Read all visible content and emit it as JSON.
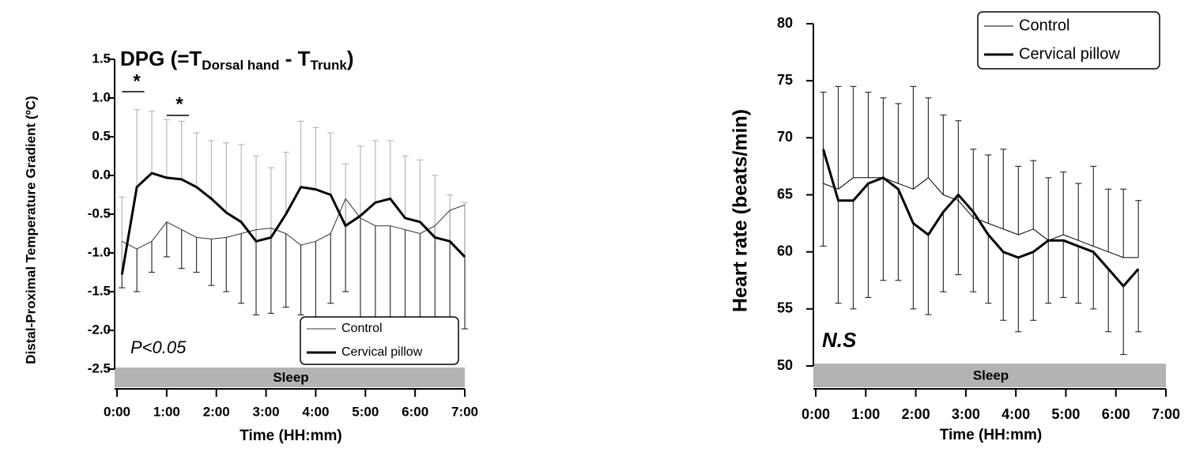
{
  "chart_data": [
    {
      "type": "line",
      "title_parts": [
        "DPG (=T",
        "Dorsal hand",
        " - T",
        "Trunk",
        ")"
      ],
      "xlabel": "Time (HH:mm)",
      "ylabel": "Distal-Proximal Temperature Gradient (ºC)",
      "annotations": [
        "*",
        "*",
        "P<0.05"
      ],
      "band_label": "Sleep",
      "xlim": [
        0,
        7
      ],
      "xticks": [
        {
          "value": 0,
          "label": "0:00"
        },
        {
          "value": 1,
          "label": "1:00"
        },
        {
          "value": 2,
          "label": "2:00"
        },
        {
          "value": 3,
          "label": "3:00"
        },
        {
          "value": 4,
          "label": "4:00"
        },
        {
          "value": 5,
          "label": "5:00"
        },
        {
          "value": 6,
          "label": "6:00"
        },
        {
          "value": 7,
          "label": "7:00"
        }
      ],
      "ylim": [
        -2.5,
        1.5
      ],
      "yticks": [
        -2.5,
        {
          "value": -2,
          "label": "-2.0"
        },
        -1.5,
        {
          "value": -1,
          "label": "-1.0"
        },
        -0.5,
        {
          "value": 0,
          "label": "0.0"
        },
        0.5,
        {
          "value": 1,
          "label": "1.0"
        },
        1.5
      ],
      "legend": "bottom-right",
      "x": [
        0.1,
        0.4,
        0.7,
        1.0,
        1.3,
        1.6,
        1.9,
        2.2,
        2.5,
        2.8,
        3.1,
        3.4,
        3.7,
        4.0,
        4.3,
        4.6,
        4.9,
        5.2,
        5.5,
        5.8,
        6.1,
        6.4,
        6.7,
        7.0
      ],
      "series": [
        {
          "name": "Control",
          "color": "#333333",
          "width": 1,
          "error_color": "#333333",
          "error_direction": "down",
          "values": [
            -0.85,
            -0.95,
            -0.85,
            -0.6,
            -0.7,
            -0.8,
            -0.82,
            -0.8,
            -0.75,
            -0.7,
            -0.68,
            -0.75,
            -0.9,
            -0.85,
            -0.75,
            -0.3,
            -0.55,
            -0.65,
            -0.65,
            -0.7,
            -0.75,
            -0.65,
            -0.45,
            -0.38
          ],
          "errors": [
            0.6,
            0.55,
            0.4,
            0.45,
            0.5,
            0.45,
            0.6,
            0.7,
            0.9,
            1.1,
            1.1,
            0.95,
            0.9,
            1.0,
            0.9,
            1.2,
            1.4,
            1.3,
            1.2,
            1.3,
            1.4,
            1.5,
            1.7,
            1.6
          ]
        },
        {
          "name": "Cervical pillow",
          "color": "#000000",
          "width": 3,
          "error_color": "#b8b8b8",
          "error_direction": "up",
          "values": [
            -1.28,
            -0.15,
            0.03,
            -0.03,
            -0.05,
            -0.15,
            -0.3,
            -0.48,
            -0.6,
            -0.85,
            -0.8,
            -0.5,
            -0.15,
            -0.18,
            -0.25,
            -0.65,
            -0.52,
            -0.35,
            -0.3,
            -0.55,
            -0.6,
            -0.8,
            -0.85,
            -1.05
          ],
          "errors": [
            1.0,
            1.0,
            0.8,
            0.75,
            0.75,
            0.7,
            0.75,
            0.9,
            1.0,
            1.1,
            0.9,
            0.8,
            0.85,
            0.8,
            0.8,
            0.8,
            0.9,
            0.8,
            0.75,
            0.8,
            0.8,
            0.8,
            0.6,
            0.7
          ]
        }
      ]
    },
    {
      "type": "line",
      "xlabel": "Time (HH:mm)",
      "ylabel": "Heart rate (beats/min)",
      "annotations": [
        "N.S"
      ],
      "band_label": "Sleep",
      "xlim": [
        0,
        7
      ],
      "xticks": [
        {
          "value": 0,
          "label": "0:00"
        },
        {
          "value": 1,
          "label": "1:00"
        },
        {
          "value": 2,
          "label": "2:00"
        },
        {
          "value": 3,
          "label": "3:00"
        },
        {
          "value": 4,
          "label": "4:00"
        },
        {
          "value": 5,
          "label": "5:00"
        },
        {
          "value": 6,
          "label": "6:00"
        },
        {
          "value": 7,
          "label": "7:00"
        }
      ],
      "ylim": [
        50,
        80
      ],
      "yticks": [
        50,
        55,
        60,
        65,
        70,
        75,
        80
      ],
      "legend": "top-right",
      "x": [
        0.15,
        0.45,
        0.75,
        1.05,
        1.35,
        1.65,
        1.95,
        2.25,
        2.55,
        2.85,
        3.15,
        3.45,
        3.75,
        4.05,
        4.35,
        4.65,
        4.95,
        5.25,
        5.55,
        5.85,
        6.15,
        6.45
      ],
      "series": [
        {
          "name": "Control",
          "color": "#000000",
          "width": 1,
          "error_color": "#333333",
          "error_direction": "up",
          "values": [
            66,
            65.5,
            66.5,
            66.5,
            66.5,
            66,
            65.5,
            66.5,
            65,
            64.5,
            63,
            62.5,
            62,
            61.5,
            62,
            61,
            61.5,
            61,
            60.5,
            60,
            59.5,
            59.5
          ],
          "errors": [
            8,
            9,
            8,
            7.5,
            7,
            7,
            9,
            7,
            7,
            7,
            6,
            6,
            7,
            6,
            6,
            5.5,
            5.5,
            5,
            7,
            5.5,
            6,
            5
          ]
        },
        {
          "name": "Cervical pillow",
          "color": "#000000",
          "width": 3,
          "error_color": "#333333",
          "error_direction": "down",
          "values": [
            69,
            64.5,
            64.5,
            66,
            66.5,
            65.5,
            62.5,
            61.5,
            63.5,
            65,
            63.5,
            61.5,
            60,
            59.5,
            60,
            61,
            61,
            60.5,
            60,
            58.5,
            57,
            58.5
          ],
          "errors": [
            8.5,
            9,
            9.5,
            10,
            9,
            8,
            7.5,
            7,
            7,
            7,
            7,
            6,
            6,
            6.5,
            6,
            5.5,
            5,
            5,
            5,
            5.5,
            6,
            5.5
          ]
        }
      ]
    }
  ]
}
